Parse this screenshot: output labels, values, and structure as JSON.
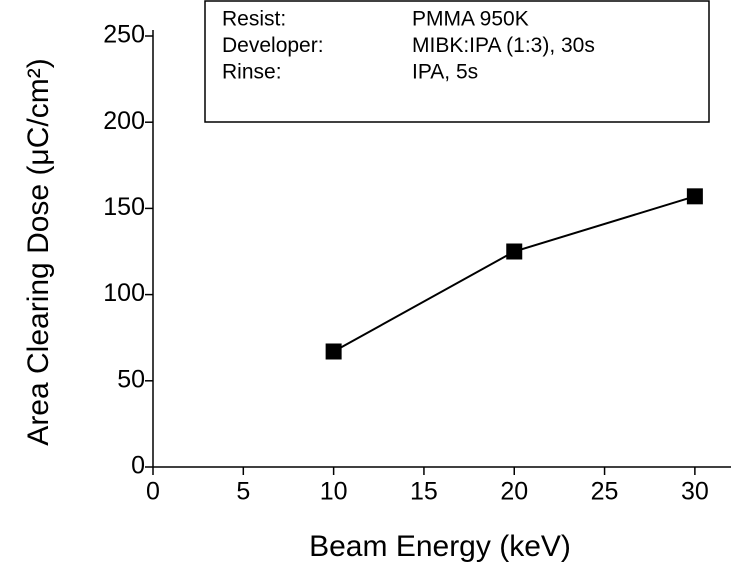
{
  "chart_data": {
    "type": "line",
    "x_label": "Beam Energy (keV)",
    "y_label": "Area Clearing Dose (μC/cm²)",
    "x": [
      10,
      20,
      30
    ],
    "series": [
      {
        "color": "#000000",
        "values": [
          67,
          125,
          157
        ]
      }
    ],
    "xlim": [
      0,
      32
    ],
    "xticks": [
      0,
      5,
      10,
      15,
      20,
      25,
      30
    ],
    "ylim": [
      0,
      250
    ],
    "yticks": [
      0,
      50,
      100,
      150,
      200,
      250
    ],
    "grid": false,
    "annotation": {
      "rows": [
        [
          "Resist:",
          "PMMA 950K"
        ],
        [
          "Developer:",
          "MIBK:IPA (1:3), 30s"
        ],
        [
          "Rinse:",
          "IPA, 5s"
        ]
      ]
    }
  }
}
